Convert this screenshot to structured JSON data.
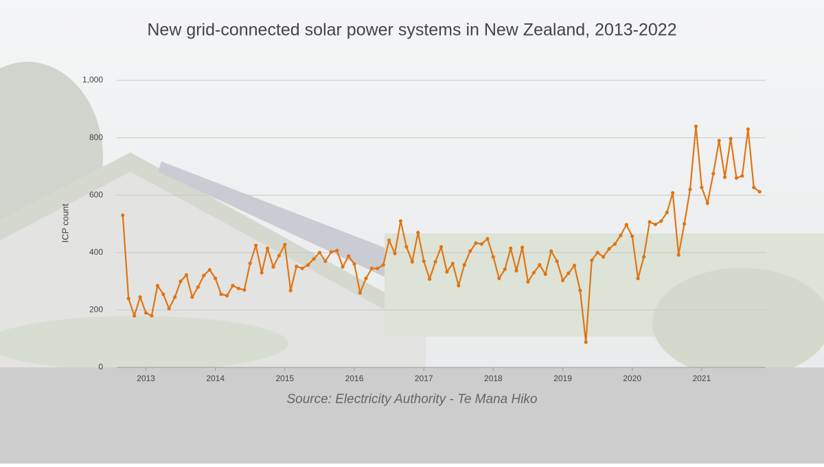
{
  "chart_data": {
    "type": "line",
    "title": "New grid-connected solar power systems in New Zealand, 2013-2022",
    "y_label": "ICP count",
    "source": "Source: Electricity Authority - Te Mana Hiko",
    "x": [
      2012.667,
      2012.75,
      2012.833,
      2012.917,
      2013,
      2013.083,
      2013.167,
      2013.25,
      2013.333,
      2013.417,
      2013.5,
      2013.583,
      2013.667,
      2013.75,
      2013.833,
      2013.917,
      2014,
      2014.083,
      2014.167,
      2014.25,
      2014.333,
      2014.417,
      2014.5,
      2014.583,
      2014.667,
      2014.75,
      2014.833,
      2014.917,
      2015,
      2015.083,
      2015.167,
      2015.25,
      2015.333,
      2015.417,
      2015.5,
      2015.583,
      2015.667,
      2015.75,
      2015.833,
      2015.917,
      2016,
      2016.083,
      2016.167,
      2016.25,
      2016.333,
      2016.417,
      2016.5,
      2016.583,
      2016.667,
      2016.75,
      2016.833,
      2016.917,
      2017,
      2017.083,
      2017.167,
      2017.25,
      2017.333,
      2017.417,
      2017.5,
      2017.583,
      2017.667,
      2017.75,
      2017.833,
      2017.917,
      2018,
      2018.083,
      2018.167,
      2018.25,
      2018.333,
      2018.417,
      2018.5,
      2018.583,
      2018.667,
      2018.75,
      2018.833,
      2018.917,
      2019,
      2019.083,
      2019.167,
      2019.25,
      2019.333,
      2019.417,
      2019.5,
      2019.583,
      2019.667,
      2019.75,
      2019.833,
      2019.917,
      2020,
      2020.083,
      2020.167,
      2020.25,
      2020.333,
      2020.417,
      2020.5,
      2020.583,
      2020.667,
      2020.75,
      2020.833,
      2020.917,
      2021,
      2021.083,
      2021.167,
      2021.25,
      2021.333,
      2021.417,
      2021.5,
      2021.583,
      2021.667,
      2021.75,
      2021.833
    ],
    "series": [
      {
        "name": "ICP count",
        "color": "#e07412",
        "values": [
          530,
          240,
          180,
          245,
          190,
          180,
          285,
          255,
          205,
          245,
          300,
          322,
          245,
          280,
          320,
          340,
          310,
          255,
          250,
          285,
          275,
          270,
          363,
          425,
          330,
          415,
          350,
          390,
          428,
          268,
          352,
          345,
          357,
          378,
          400,
          370,
          402,
          407,
          350,
          388,
          360,
          260,
          310,
          345,
          345,
          357,
          443,
          397,
          510,
          420,
          368,
          470,
          370,
          308,
          368,
          420,
          333,
          362,
          285,
          357,
          405,
          433,
          430,
          448,
          385,
          310,
          342,
          415,
          337,
          418,
          298,
          330,
          357,
          325,
          405,
          370,
          303,
          328,
          355,
          268,
          88,
          373,
          400,
          385,
          413,
          430,
          460,
          497,
          457,
          310,
          385,
          507,
          498,
          510,
          540,
          608,
          392,
          500,
          620,
          840,
          627,
          572,
          675,
          790,
          663,
          797,
          660,
          667,
          830,
          627,
          612
        ]
      }
    ],
    "xlim": [
      2012.58,
      2021.92
    ],
    "xticks": [
      2013,
      2014,
      2015,
      2016,
      2017,
      2018,
      2019,
      2020,
      2021
    ],
    "ylim": [
      0,
      1000
    ],
    "yticks": [
      0,
      200,
      400,
      600,
      800,
      {
        "value": 1000,
        "label": "1,000"
      }
    ],
    "grid": true
  }
}
